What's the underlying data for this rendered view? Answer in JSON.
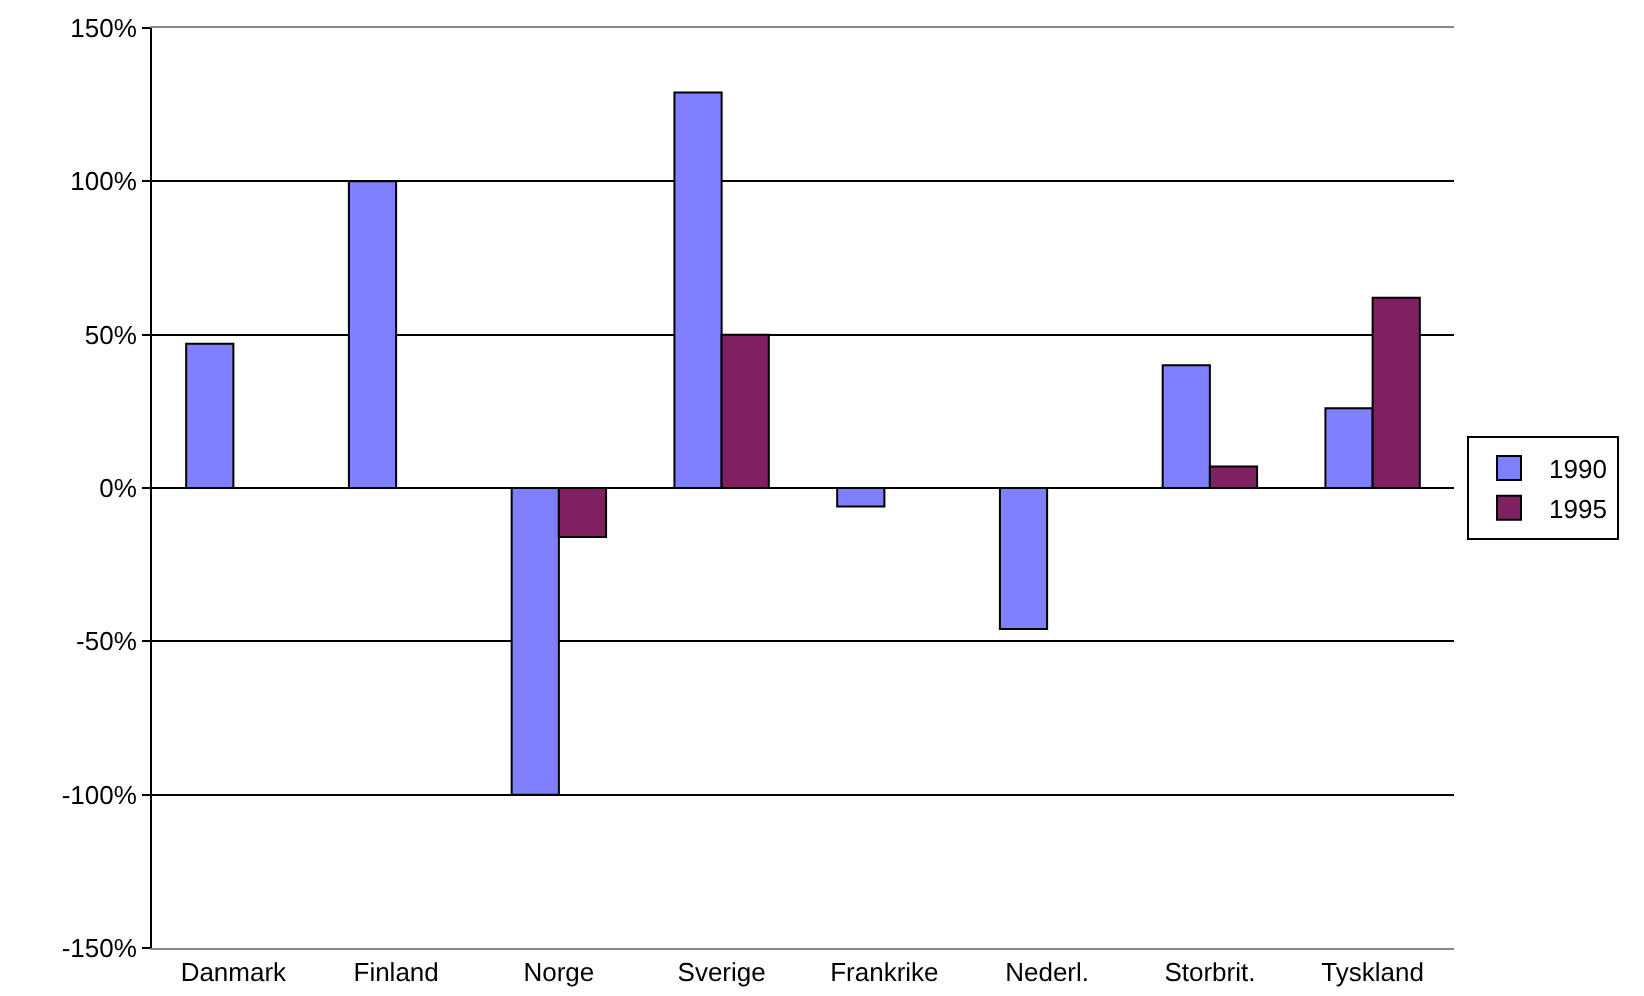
{
  "chart_data": {
    "type": "bar",
    "categories": [
      "Danmark",
      "Finland",
      "Norge",
      "Sverige",
      "Frankrike",
      "Nederl.",
      "Storbrit.",
      "Tyskland"
    ],
    "series": [
      {
        "name": "1990",
        "color": "#8080ff",
        "values": [
          47,
          100,
          -100,
          129,
          -6,
          -46,
          40,
          26
        ]
      },
      {
        "name": "1995",
        "color": "#802060",
        "values": [
          null,
          null,
          -16,
          50,
          null,
          null,
          7,
          62
        ]
      }
    ],
    "ylim": [
      -150,
      150
    ],
    "yticks": [
      {
        "value": -150,
        "label": "-150%"
      },
      {
        "value": -100,
        "label": "-100%"
      },
      {
        "value": -50,
        "label": "-50%"
      },
      {
        "value": 0,
        "label": "0%"
      },
      {
        "value": 50,
        "label": "50%"
      },
      {
        "value": 100,
        "label": "100%"
      },
      {
        "value": 150,
        "label": "150%"
      }
    ],
    "grid": "y",
    "legend": "right"
  }
}
